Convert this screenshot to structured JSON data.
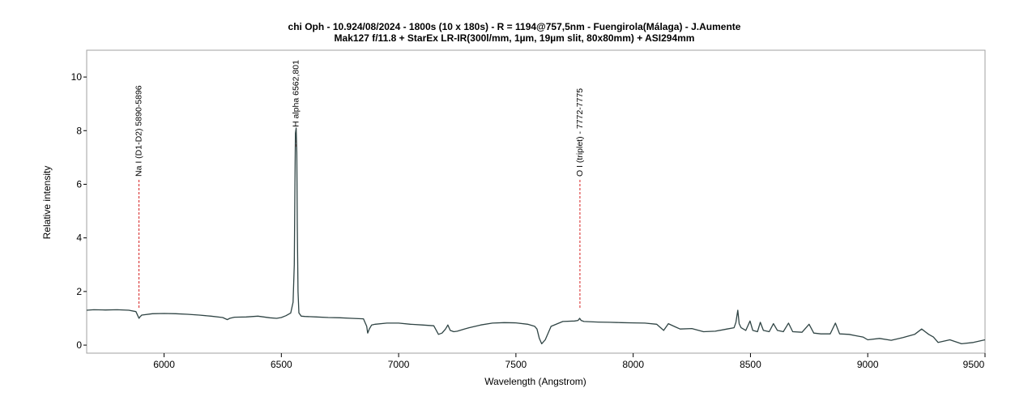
{
  "chart_data": {
    "type": "line",
    "title": "chi Oph - 10.924/08/2024 - 1800s (10 x 180s) - R = 1194@757,5nm - Fuengirola(Málaga) - J.Aumente",
    "subtitle": "Mak127 f/11.8 + StarEx LR-IR(300l/mm, 1µm, 19µm slit, 80x80mm) + ASI294mm",
    "xlabel": "Wavelength (Angstrom)",
    "ylabel": "Relative intensity",
    "xlim": [
      5670,
      9500
    ],
    "ylim": [
      -0.3,
      11.0
    ],
    "xticks": [
      6000,
      6500,
      7000,
      7500,
      8000,
      8500,
      9000,
      9500
    ],
    "yticks": [
      0,
      2,
      4,
      6,
      8,
      10
    ],
    "grid": false,
    "line_color": "#2f4444",
    "marker_color": "#d62020",
    "series": [
      {
        "x": [
          5670,
          5700,
          5750,
          5800,
          5850,
          5880,
          5888,
          5893,
          5897,
          5905,
          5950,
          6000,
          6050,
          6100,
          6150,
          6200,
          6250,
          6270,
          6280,
          6300,
          6350,
          6400,
          6450,
          6480,
          6500,
          6520,
          6540,
          6550,
          6555,
          6558,
          6560,
          6563,
          6566,
          6568,
          6571,
          6575,
          6585,
          6600,
          6650,
          6700,
          6750,
          6800,
          6850,
          6864,
          6868,
          6875,
          6885,
          6900,
          6950,
          7000,
          7050,
          7100,
          7150,
          7170,
          7185,
          7200,
          7210,
          7220,
          7235,
          7250,
          7280,
          7300,
          7350,
          7400,
          7450,
          7500,
          7550,
          7580,
          7590,
          7600,
          7610,
          7625,
          7650,
          7700,
          7750,
          7765,
          7772,
          7778,
          7790,
          7850,
          7900,
          7950,
          8000,
          8050,
          8100,
          8130,
          8150,
          8180,
          8200,
          8250,
          8300,
          8350,
          8400,
          8430,
          8438,
          8446,
          8452,
          8460,
          8480,
          8498,
          8510,
          8530,
          8542,
          8555,
          8580,
          8598,
          8615,
          8640,
          8662,
          8680,
          8720,
          8750,
          8770,
          8800,
          8840,
          8862,
          8880,
          8920,
          8950,
          8980,
          9000,
          9050,
          9100,
          9150,
          9200,
          9230,
          9260,
          9280,
          9300,
          9350,
          9400,
          9450,
          9500
        ],
        "y": [
          1.3,
          1.32,
          1.31,
          1.32,
          1.3,
          1.25,
          1.1,
          1.0,
          1.05,
          1.12,
          1.17,
          1.18,
          1.17,
          1.15,
          1.12,
          1.08,
          1.03,
          0.95,
          1.0,
          1.04,
          1.05,
          1.08,
          1.02,
          1.0,
          1.03,
          1.1,
          1.2,
          1.6,
          3.0,
          6.0,
          7.9,
          8.1,
          7.2,
          4.5,
          2.0,
          1.2,
          1.08,
          1.07,
          1.05,
          1.03,
          1.02,
          1.0,
          0.98,
          0.7,
          0.45,
          0.6,
          0.75,
          0.78,
          0.82,
          0.82,
          0.78,
          0.75,
          0.72,
          0.4,
          0.45,
          0.6,
          0.75,
          0.55,
          0.5,
          0.52,
          0.6,
          0.65,
          0.75,
          0.82,
          0.84,
          0.83,
          0.78,
          0.7,
          0.6,
          0.25,
          0.05,
          0.2,
          0.7,
          0.88,
          0.9,
          0.92,
          1.0,
          0.92,
          0.88,
          0.86,
          0.85,
          0.84,
          0.83,
          0.82,
          0.78,
          0.55,
          0.8,
          0.68,
          0.6,
          0.62,
          0.5,
          0.52,
          0.6,
          0.65,
          0.85,
          1.3,
          0.8,
          0.65,
          0.55,
          0.9,
          0.55,
          0.5,
          0.85,
          0.55,
          0.5,
          0.8,
          0.55,
          0.5,
          0.82,
          0.5,
          0.48,
          0.78,
          0.45,
          0.42,
          0.42,
          0.82,
          0.42,
          0.4,
          0.35,
          0.3,
          0.2,
          0.25,
          0.18,
          0.28,
          0.4,
          0.6,
          0.4,
          0.3,
          0.1,
          0.2,
          0.05,
          0.1,
          0.2
        ]
      }
    ],
    "annotations": [
      {
        "x": 5893,
        "y": 1.35,
        "label": "Na I (D1-D2) 5890-5896"
      },
      {
        "x": 6563,
        "y": 7.4,
        "label": "H alpha 6562,801"
      },
      {
        "x": 7773,
        "y": 1.35,
        "label": "O I (triplet) - 7772-7775"
      }
    ]
  }
}
